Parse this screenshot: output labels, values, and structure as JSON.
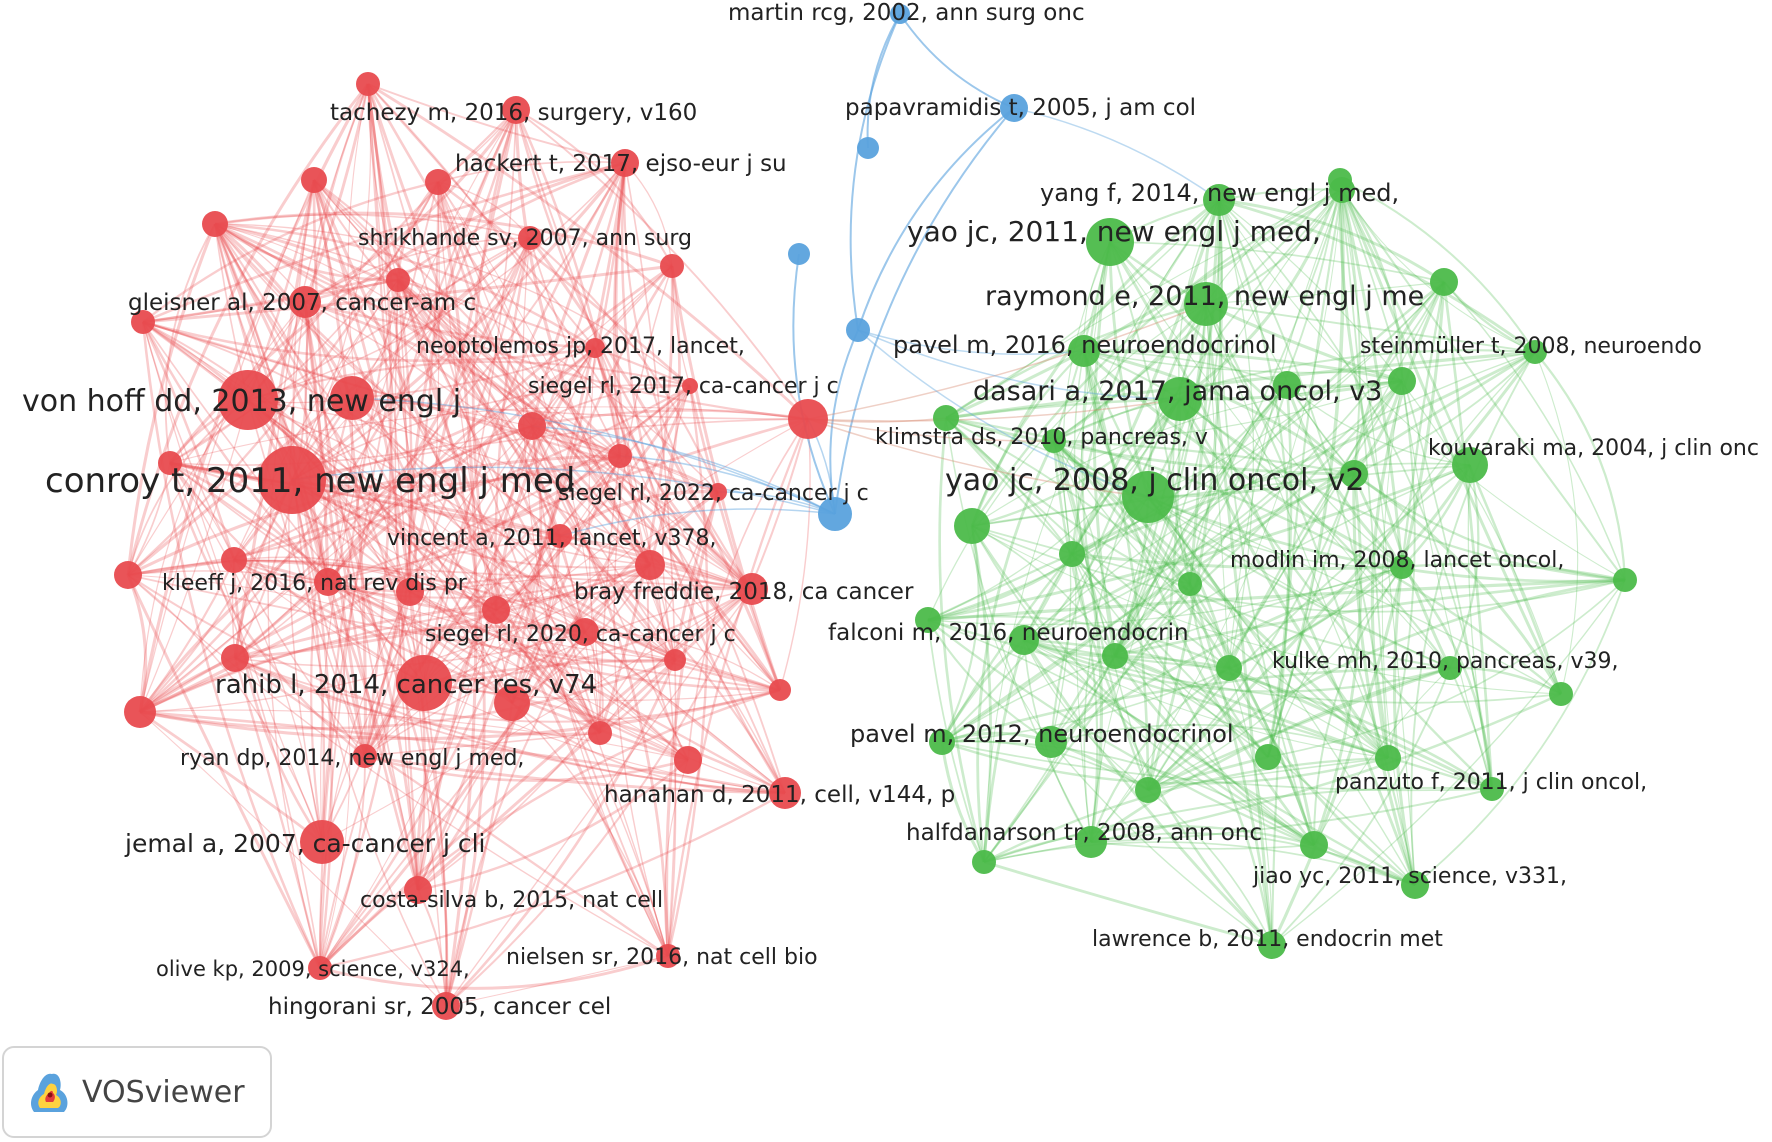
{
  "app": {
    "name": "VOSviewer"
  },
  "colors": {
    "red": "#e84b4f",
    "green": "#4cbb4a",
    "blue": "#5aa2dd"
  },
  "nodes": [
    {
      "key": "R01",
      "cluster": "red",
      "label": "conroy t, 2011, new engl j med"
    },
    {
      "key": "R02",
      "cluster": "red",
      "label": "von hoff dd, 2013, new engl j"
    },
    {
      "key": "R03",
      "cluster": "red",
      "label": "rahib l, 2014, cancer res, v74"
    },
    {
      "key": "R04",
      "cluster": "red",
      "label": "jemal a, 2007, ca-cancer j cli"
    },
    {
      "key": "R05",
      "cluster": "red",
      "label": "tachezy m, 2016, surgery, v160"
    },
    {
      "key": "R06",
      "cluster": "red",
      "label": "hackert t, 2017, ejso-eur j su"
    },
    {
      "key": "R07",
      "cluster": "red",
      "label": "shrikhande sv, 2007, ann surg"
    },
    {
      "key": "R08",
      "cluster": "red",
      "label": "gleisner al, 2007, cancer-am c"
    },
    {
      "key": "R09",
      "cluster": "red",
      "label": "neoptolemos jp, 2017, lancet,"
    },
    {
      "key": "R10",
      "cluster": "red",
      "label": "siegel rl, 2017, ca-cancer j c"
    },
    {
      "key": "R11",
      "cluster": "red",
      "label": "siegel rl, 2022, ca-cancer j c"
    },
    {
      "key": "R12",
      "cluster": "red",
      "label": "vincent a, 2011, lancet, v378,"
    },
    {
      "key": "R13",
      "cluster": "red",
      "label": "kleeff j, 2016, nat rev dis pr"
    },
    {
      "key": "R14",
      "cluster": "red",
      "label": "bray freddie, 2018, ca cancer"
    },
    {
      "key": "R15",
      "cluster": "red",
      "label": "siegel rl, 2020, ca-cancer j c"
    },
    {
      "key": "R16",
      "cluster": "red",
      "label": "ryan dp, 2014, new engl j med,"
    },
    {
      "key": "R17",
      "cluster": "red",
      "label": "hanahan d, 2011, cell, v144, p"
    },
    {
      "key": "R18",
      "cluster": "red",
      "label": "costa-silva b, 2015, nat cell"
    },
    {
      "key": "R19",
      "cluster": "red",
      "label": "olive kp, 2009, science, v324,"
    },
    {
      "key": "R20",
      "cluster": "red",
      "label": "nielsen sr, 2016, nat cell bio"
    },
    {
      "key": "R21",
      "cluster": "red",
      "label": "hingorani sr, 2005, cancer cel"
    },
    {
      "key": "R22",
      "cluster": "red",
      "label": ""
    },
    {
      "key": "R23",
      "cluster": "red",
      "label": ""
    },
    {
      "key": "R24",
      "cluster": "red",
      "label": ""
    },
    {
      "key": "R25",
      "cluster": "red",
      "label": ""
    },
    {
      "key": "R26",
      "cluster": "red",
      "label": ""
    },
    {
      "key": "R27",
      "cluster": "red",
      "label": ""
    },
    {
      "key": "R28",
      "cluster": "red",
      "label": ""
    },
    {
      "key": "R29",
      "cluster": "red",
      "label": ""
    },
    {
      "key": "R30",
      "cluster": "red",
      "label": ""
    },
    {
      "key": "R31",
      "cluster": "red",
      "label": ""
    },
    {
      "key": "R32",
      "cluster": "red",
      "label": ""
    },
    {
      "key": "R33",
      "cluster": "red",
      "label": ""
    },
    {
      "key": "R34",
      "cluster": "red",
      "label": ""
    },
    {
      "key": "R35",
      "cluster": "red",
      "label": ""
    },
    {
      "key": "R36",
      "cluster": "red",
      "label": ""
    },
    {
      "key": "R37",
      "cluster": "red",
      "label": ""
    },
    {
      "key": "R38",
      "cluster": "red",
      "label": ""
    },
    {
      "key": "R39",
      "cluster": "red",
      "label": ""
    },
    {
      "key": "R40",
      "cluster": "red",
      "label": ""
    },
    {
      "key": "R41",
      "cluster": "red",
      "label": ""
    },
    {
      "key": "R42",
      "cluster": "red",
      "label": ""
    },
    {
      "key": "R43",
      "cluster": "red",
      "label": ""
    },
    {
      "key": "R44",
      "cluster": "red",
      "label": ""
    },
    {
      "key": "R45",
      "cluster": "red",
      "label": ""
    },
    {
      "key": "G01",
      "cluster": "green",
      "label": "yao jc, 2008, j clin oncol, v2"
    },
    {
      "key": "G02",
      "cluster": "green",
      "label": "yao jc, 2011, new engl j med,"
    },
    {
      "key": "G03",
      "cluster": "green",
      "label": "raymond e, 2011, new engl j me"
    },
    {
      "key": "G04",
      "cluster": "green",
      "label": "dasari a, 2017, jama oncol, v3"
    },
    {
      "key": "G05",
      "cluster": "green",
      "label": "yang f, 2014, new engl j med,"
    },
    {
      "key": "G06",
      "cluster": "green",
      "label": "pavel m, 2016, neuroendocrinol"
    },
    {
      "key": "G07",
      "cluster": "green",
      "label": "steinmüller t, 2008, neuroendo"
    },
    {
      "key": "G08",
      "cluster": "green",
      "label": "klimstra ds, 2010, pancreas, v"
    },
    {
      "key": "G09",
      "cluster": "green",
      "label": "kouvaraki ma, 2004, j clin onc"
    },
    {
      "key": "G10",
      "cluster": "green",
      "label": "modlin im, 2008, lancet oncol,"
    },
    {
      "key": "G11",
      "cluster": "green",
      "label": "falconi m, 2016, neuroendocrin"
    },
    {
      "key": "G12",
      "cluster": "green",
      "label": "kulke mh, 2010, pancreas, v39,"
    },
    {
      "key": "G13",
      "cluster": "green",
      "label": "pavel m, 2012, neuroendocrinol"
    },
    {
      "key": "G14",
      "cluster": "green",
      "label": "panzuto f, 2011, j clin oncol,"
    },
    {
      "key": "G15",
      "cluster": "green",
      "label": "halfdanarson tr, 2008, ann onc"
    },
    {
      "key": "G16",
      "cluster": "green",
      "label": "jiao yc, 2011, science, v331,"
    },
    {
      "key": "G17",
      "cluster": "green",
      "label": "lawrence b, 2011, endocrin met"
    },
    {
      "key": "G18",
      "cluster": "green",
      "label": ""
    },
    {
      "key": "G19",
      "cluster": "green",
      "label": ""
    },
    {
      "key": "G20",
      "cluster": "green",
      "label": ""
    },
    {
      "key": "G21",
      "cluster": "green",
      "label": ""
    },
    {
      "key": "G22",
      "cluster": "green",
      "label": ""
    },
    {
      "key": "G23",
      "cluster": "green",
      "label": ""
    },
    {
      "key": "G24",
      "cluster": "green",
      "label": ""
    },
    {
      "key": "G25",
      "cluster": "green",
      "label": ""
    },
    {
      "key": "G26",
      "cluster": "green",
      "label": ""
    },
    {
      "key": "G27",
      "cluster": "green",
      "label": ""
    },
    {
      "key": "G28",
      "cluster": "green",
      "label": ""
    },
    {
      "key": "G29",
      "cluster": "green",
      "label": ""
    },
    {
      "key": "G30",
      "cluster": "green",
      "label": ""
    },
    {
      "key": "G31",
      "cluster": "green",
      "label": ""
    },
    {
      "key": "G32",
      "cluster": "green",
      "label": ""
    },
    {
      "key": "G33",
      "cluster": "green",
      "label": ""
    },
    {
      "key": "G34",
      "cluster": "green",
      "label": ""
    },
    {
      "key": "G35",
      "cluster": "green",
      "label": ""
    },
    {
      "key": "G36",
      "cluster": "green",
      "label": ""
    },
    {
      "key": "G37",
      "cluster": "green",
      "label": ""
    },
    {
      "key": "G38",
      "cluster": "green",
      "label": ""
    },
    {
      "key": "B01",
      "cluster": "blue",
      "label": "martin rcg, 2002, ann surg onc"
    },
    {
      "key": "B02",
      "cluster": "blue",
      "label": "papavramidis t, 2005, j am col"
    },
    {
      "key": "B03",
      "cluster": "blue",
      "label": ""
    },
    {
      "key": "B04",
      "cluster": "blue",
      "label": ""
    },
    {
      "key": "B05",
      "cluster": "blue",
      "label": ""
    },
    {
      "key": "B06",
      "cluster": "blue",
      "label": ""
    }
  ]
}
